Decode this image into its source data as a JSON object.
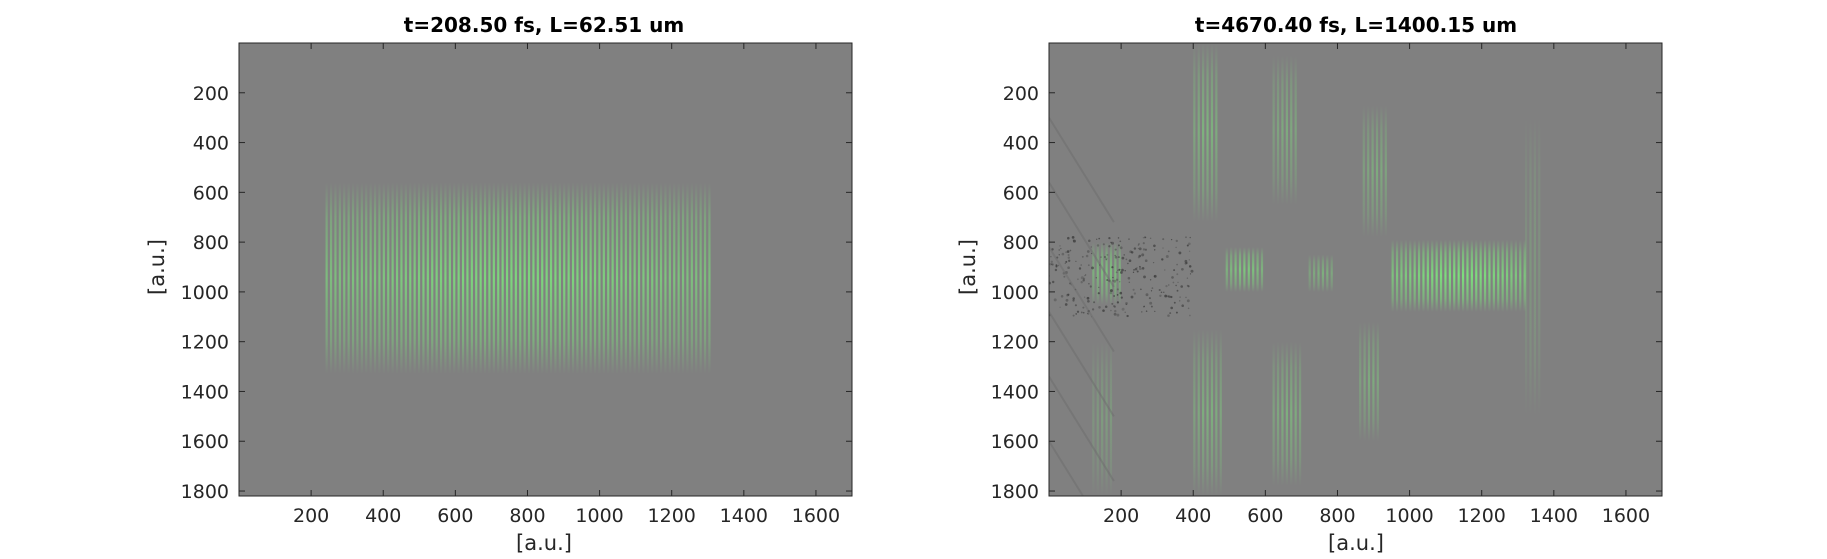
{
  "figure": {
    "colors": {
      "background": "#808080",
      "signal": "#7cf07c",
      "axis": "#262626"
    },
    "panels": [
      {
        "title": "t=208.50 fs, L=62.51 um",
        "xlabel": "[a.u.]",
        "ylabel": "[a.u.]",
        "xlim": [
          0,
          1700
        ],
        "ylim": [
          1820,
          0
        ],
        "y_reversed": true,
        "xticks": [
          200,
          400,
          600,
          800,
          1000,
          1200,
          1400,
          1600
        ],
        "yticks": [
          200,
          400,
          600,
          800,
          1000,
          1200,
          1400,
          1600,
          1800
        ],
        "pattern": "single broad fringe packet",
        "packets": [
          {
            "x0": 240,
            "x1": 1310,
            "y0": 560,
            "y1": 1330,
            "strength": 0.9
          }
        ]
      },
      {
        "title": "t=4670.40 fs, L=1400.15 um",
        "xlabel": "[a.u.]",
        "ylabel": "[a.u.]",
        "xlim": [
          0,
          1700
        ],
        "ylim": [
          1820,
          0
        ],
        "y_reversed": true,
        "xticks": [
          200,
          400,
          600,
          800,
          1000,
          1200,
          1400,
          1600
        ],
        "yticks": [
          200,
          400,
          600,
          800,
          1000,
          1200,
          1400,
          1600,
          1800
        ],
        "pattern": "fragmented fringe packets",
        "packets": [
          {
            "x0": 950,
            "x1": 1320,
            "y0": 790,
            "y1": 1080,
            "strength": 1.0
          },
          {
            "x0": 490,
            "x1": 590,
            "y0": 820,
            "y1": 1000,
            "strength": 0.75
          },
          {
            "x0": 120,
            "x1": 200,
            "y0": 800,
            "y1": 1050,
            "strength": 0.7
          },
          {
            "x0": 720,
            "x1": 790,
            "y0": 850,
            "y1": 1000,
            "strength": 0.5
          },
          {
            "x0": 400,
            "x1": 470,
            "y0": 0,
            "y1": 720,
            "strength": 0.55
          },
          {
            "x0": 400,
            "x1": 480,
            "y0": 1150,
            "y1": 1820,
            "strength": 0.5
          },
          {
            "x0": 620,
            "x1": 690,
            "y0": 50,
            "y1": 650,
            "strength": 0.45
          },
          {
            "x0": 620,
            "x1": 700,
            "y0": 1200,
            "y1": 1780,
            "strength": 0.5
          },
          {
            "x0": 870,
            "x1": 940,
            "y0": 250,
            "y1": 780,
            "strength": 0.45
          },
          {
            "x0": 860,
            "x1": 920,
            "y0": 1120,
            "y1": 1600,
            "strength": 0.45
          },
          {
            "x0": 120,
            "x1": 180,
            "y0": 1200,
            "y1": 1820,
            "strength": 0.3
          },
          {
            "x0": 1320,
            "x1": 1360,
            "y0": 300,
            "y1": 1500,
            "strength": 0.25
          }
        ]
      }
    ]
  }
}
